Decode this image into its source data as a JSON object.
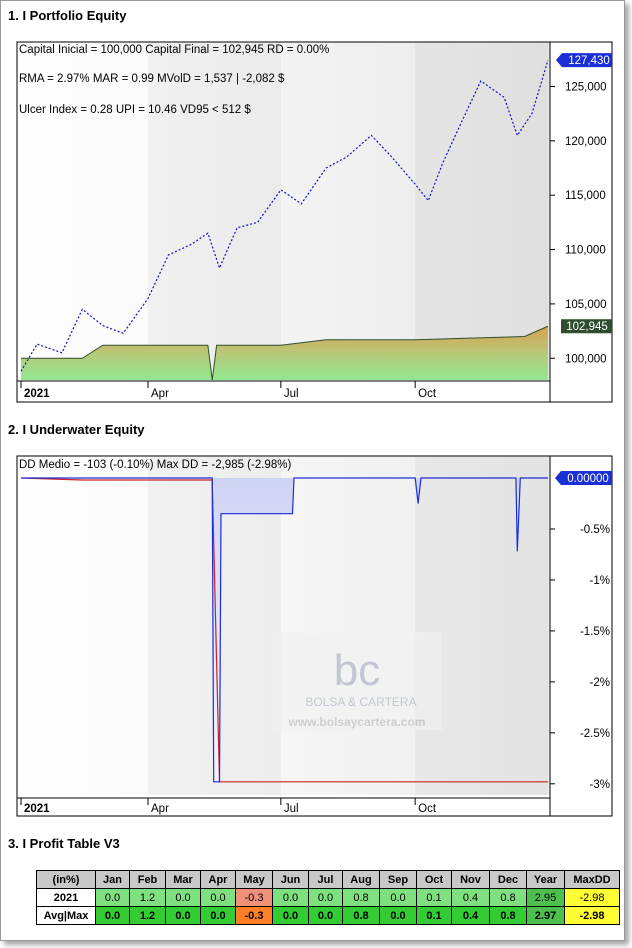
{
  "sections": {
    "s1": "1. I Portfolio Equity",
    "s2": "2. I Underwater Equity",
    "s3": "3. I Profit Table V3"
  },
  "equity": {
    "stats_line1": "Capital Inicial = 100,000  Capital Final = 102,945   RD = 0.00%",
    "stats_line2": "RMA = 2.97%   MAR = 0.99   MVolD = 1,537 | -2,082 $",
    "stats_line3": "Ulcer Index = 0.28   UPI = 10.46   VD95 < 512 $",
    "last_value_badge": "127,430",
    "final_value_badge": "102,945",
    "colors": {
      "line": "#1010c8",
      "badge_blue": "#1a2fd6",
      "badge_dark": "#2e4d2e"
    }
  },
  "underwater": {
    "stats": "DD Medio = -103 (-0.10%)        Max DD = -2,985 (-2.98%)",
    "current_badge": "0.00000",
    "watermark_name": "BOLSA & CARTERA",
    "watermark_url": "www.bolsaycartera.com",
    "watermark_logo": "bc"
  },
  "chart_data": [
    {
      "type": "line",
      "title": "",
      "x_ticks": [
        "2021",
        "Apr",
        "Jul",
        "Oct"
      ],
      "y_ticks": [
        "100,000",
        "105,000",
        "110,000",
        "115,000",
        "120,000",
        "125,000"
      ],
      "ylim": [
        98000,
        129000
      ],
      "series": [
        {
          "x": [
            "2021-01-04",
            "2021-01-15",
            "2021-02-01",
            "2021-02-15",
            "2021-03-01",
            "2021-03-15",
            "2021-04-01",
            "2021-04-15",
            "2021-05-01",
            "2021-05-12",
            "2021-05-20",
            "2021-06-01",
            "2021-06-15",
            "2021-07-01",
            "2021-07-15",
            "2021-08-01",
            "2021-08-15",
            "2021-09-01",
            "2021-09-15",
            "2021-10-01",
            "2021-10-10",
            "2021-10-20",
            "2021-11-01",
            "2021-11-15",
            "2021-12-01",
            "2021-12-10",
            "2021-12-20",
            "2021-12-31"
          ],
          "y": [
            98800,
            101300,
            100500,
            104500,
            103000,
            102300,
            105500,
            109500,
            110500,
            111500,
            108300,
            112000,
            112500,
            115500,
            114200,
            117500,
            118500,
            120500,
            118500,
            116000,
            114500,
            118000,
            121500,
            125500,
            124000,
            120500,
            122500,
            127430
          ]
        },
        {
          "x": [
            "2021-01-04",
            "2021-02-15",
            "2021-03-01",
            "2021-05-12",
            "2021-05-15",
            "2021-05-18",
            "2021-07-01",
            "2021-08-01",
            "2021-10-01",
            "2021-12-15",
            "2021-12-31"
          ],
          "y": [
            100000,
            100000,
            101200,
            101200,
            98000,
            101200,
            101200,
            101700,
            101700,
            102000,
            102945
          ]
        }
      ]
    },
    {
      "type": "area",
      "title": "",
      "x_ticks": [
        "2021",
        "Apr",
        "Jul",
        "Oct"
      ],
      "y_ticks": [
        "-0.5%",
        "-1%",
        "-1.5%",
        "-2%",
        "-2.5%",
        "-3%"
      ],
      "ylim": [
        -3.1,
        0.05
      ],
      "series": [
        {
          "x": [
            "2021-01-04",
            "2021-05-15",
            "2021-05-16",
            "2021-05-20",
            "2021-05-21",
            "2021-07-09",
            "2021-07-10",
            "2021-10-01",
            "2021-10-03",
            "2021-10-05",
            "2021-12-09",
            "2021-12-10",
            "2021-12-12",
            "2021-12-31"
          ],
          "y": [
            0.0,
            0.0,
            -2.98,
            -2.98,
            -0.35,
            -0.35,
            0.0,
            0.0,
            -0.25,
            0.0,
            0.0,
            -0.72,
            0.0,
            0.0
          ]
        },
        {
          "x": [
            "2021-01-04",
            "2021-02-15",
            "2021-05-15",
            "2021-05-20",
            "2021-12-31"
          ],
          "y": [
            0.0,
            -0.02,
            -0.02,
            -2.98,
            -2.98
          ]
        }
      ]
    },
    {
      "type": "table",
      "columns": [
        "(in%)",
        "Jan",
        "Feb",
        "Mar",
        "Apr",
        "May",
        "Jun",
        "Jul",
        "Aug",
        "Sep",
        "Oct",
        "Nov",
        "Dec",
        "Year",
        "MaxDD"
      ],
      "rows": [
        [
          "2021",
          "0.0",
          "1.2",
          "0.0",
          "0.0",
          "-0.3",
          "0.0",
          "0.0",
          "0.8",
          "0.0",
          "0.1",
          "0.4",
          "0.8",
          "2.95",
          "-2.98"
        ],
        [
          "Avg|Max",
          "0.0",
          "1.2",
          "0.0",
          "0.0",
          "-0.3",
          "0.0",
          "0.0",
          "0.8",
          "0.0",
          "0.1",
          "0.4",
          "0.8",
          "2.97",
          "-2.98"
        ]
      ]
    }
  ]
}
